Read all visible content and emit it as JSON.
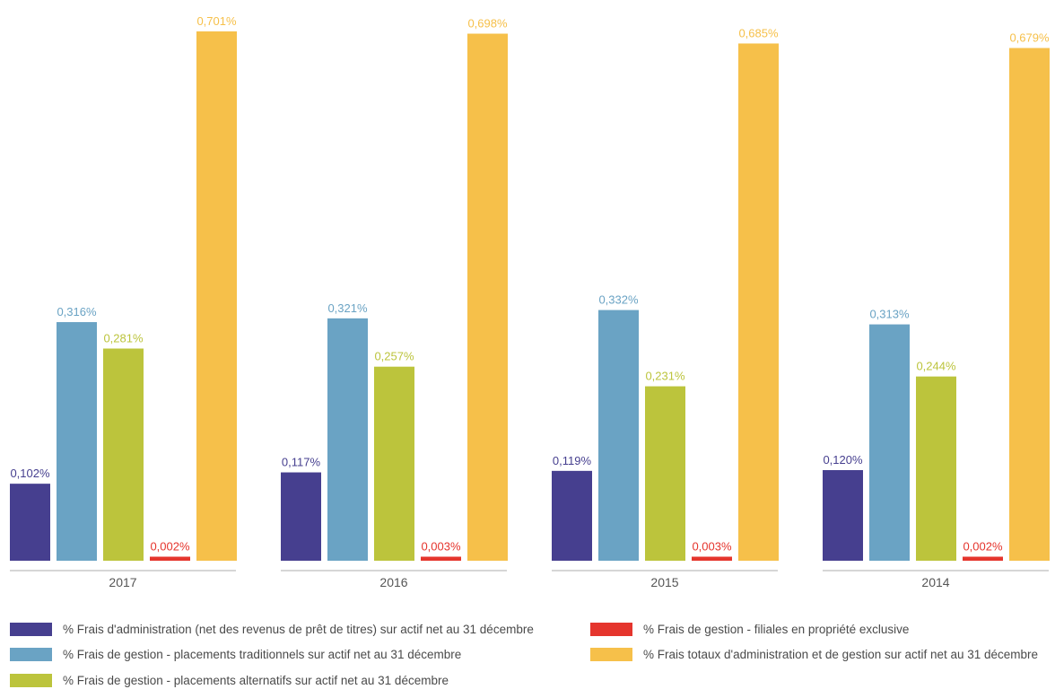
{
  "colors": {
    "admin": "#463f8f",
    "trad": "#6aa3c4",
    "alt": "#bcc43c",
    "subs": "#e5352d",
    "total": "#f6c04a",
    "axis": "#bdbdbd",
    "year_text": "#555555"
  },
  "chart_data": {
    "type": "bar",
    "title": "",
    "xlabel": "",
    "ylabel": "",
    "ylim": [
      0,
      0.72
    ],
    "grid": false,
    "legend_position": "bottom",
    "categories": [
      "2017",
      "2016",
      "2015",
      "2014"
    ],
    "series": [
      {
        "key": "admin",
        "name": "% Frais d'administration (net des revenus de prêt de titres) sur actif net au 31 décembre",
        "values": [
          0.102,
          0.117,
          0.119,
          0.12
        ],
        "labels": [
          "0,102%",
          "0,117%",
          "0,119%",
          "0,120%"
        ]
      },
      {
        "key": "trad",
        "name": "% Frais de gestion - placements traditionnels sur actif net au 31 décembre",
        "values": [
          0.316,
          0.321,
          0.332,
          0.313
        ],
        "labels": [
          "0,316%",
          "0,321%",
          "0,332%",
          "0,313%"
        ]
      },
      {
        "key": "alt",
        "name": "% Frais de gestion - placements alternatifs sur actif net au 31 décembre",
        "values": [
          0.281,
          0.257,
          0.231,
          0.244
        ],
        "labels": [
          "0,281%",
          "0,257%",
          "0,231%",
          "0,244%"
        ]
      },
      {
        "key": "subs",
        "name": "% Frais de gestion - filiales en propriété exclusive",
        "values": [
          0.002,
          0.003,
          0.003,
          0.002
        ],
        "labels": [
          "0,002%",
          "0,003%",
          "0,003%",
          "0,002%"
        ]
      },
      {
        "key": "total",
        "name": "% Frais totaux d'administration et de gestion sur actif net au 31 décembre",
        "values": [
          0.701,
          0.698,
          0.685,
          0.679
        ],
        "labels": [
          "0,701%",
          "0,698%",
          "0,685%",
          "0,679%"
        ]
      }
    ]
  }
}
